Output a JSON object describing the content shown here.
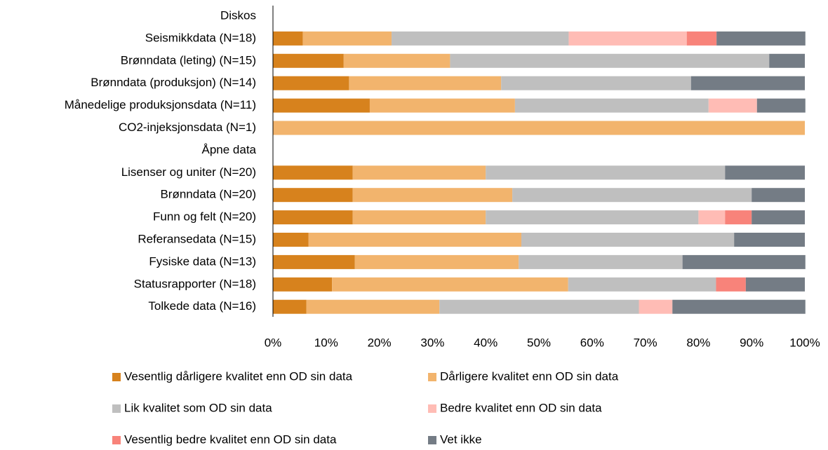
{
  "chart_data": {
    "type": "stacked_barh",
    "categories": [
      "Diskos",
      "Seismikkdata (N=18)",
      "Brønndata (leting) (N=15)",
      "Brønndata (produksjon) (N=14)",
      "Månedelige produksjonsdata (N=11)",
      "CO2-injeksjonsdata (N=1)",
      "Åpne data",
      "Lisenser og uniter (N=20)",
      "Brønndata (N=20)",
      "Funn og felt (N=20)",
      "Referansedata (N=15)",
      "Fysiske data (N=13)",
      "Statusrapporter (N=18)",
      "Tolkede data (N=16)"
    ],
    "series": [
      {
        "name": "Vesentlig dårligere kvalitet enn OD sin data",
        "color": "#D7821D",
        "values": [
          null,
          5.6,
          13.3,
          14.3,
          18.2,
          0,
          null,
          15,
          15,
          15,
          6.7,
          15.4,
          11.1,
          6.3
        ]
      },
      {
        "name": "Dårligere kvalitet enn OD sin data",
        "color": "#F2B46D",
        "values": [
          null,
          16.7,
          20,
          28.6,
          27.3,
          100,
          null,
          25,
          30,
          25,
          40,
          30.8,
          44.4,
          25
        ]
      },
      {
        "name": "Lik kvalitet som OD sin data",
        "color": "#BFBFBF",
        "values": [
          null,
          33.3,
          60,
          35.7,
          36.4,
          0,
          null,
          45,
          45,
          40,
          40,
          30.8,
          27.8,
          37.5
        ]
      },
      {
        "name": "Bedre kvalitet enn OD sin data",
        "color": "#FFBCB5",
        "values": [
          null,
          22.2,
          0,
          0,
          9.1,
          0,
          null,
          0,
          0,
          5,
          0,
          0,
          0,
          6.3
        ]
      },
      {
        "name": "Vesentlig bedre kvalitet enn OD sin data",
        "color": "#F8837A",
        "values": [
          null,
          5.6,
          0,
          0,
          0,
          0,
          null,
          0,
          0,
          5,
          0,
          0,
          5.6,
          0
        ]
      },
      {
        "name": "Vet ikke",
        "color": "#747C85",
        "values": [
          null,
          16.7,
          6.7,
          21.4,
          9.1,
          0,
          null,
          15,
          10,
          10,
          13.3,
          23.1,
          11.1,
          25
        ]
      }
    ],
    "xlim": [
      0,
      100
    ],
    "xticks": [
      {
        "value": 0,
        "label": "0%"
      },
      {
        "value": 10,
        "label": "10%"
      },
      {
        "value": 20,
        "label": "20%"
      },
      {
        "value": 30,
        "label": "30%"
      },
      {
        "value": 40,
        "label": "40%"
      },
      {
        "value": 50,
        "label": "50%"
      },
      {
        "value": 60,
        "label": "60%"
      },
      {
        "value": 70,
        "label": "70%"
      },
      {
        "value": 80,
        "label": "80%"
      },
      {
        "value": 90,
        "label": "90%"
      },
      {
        "value": 100,
        "label": "100%"
      }
    ]
  }
}
